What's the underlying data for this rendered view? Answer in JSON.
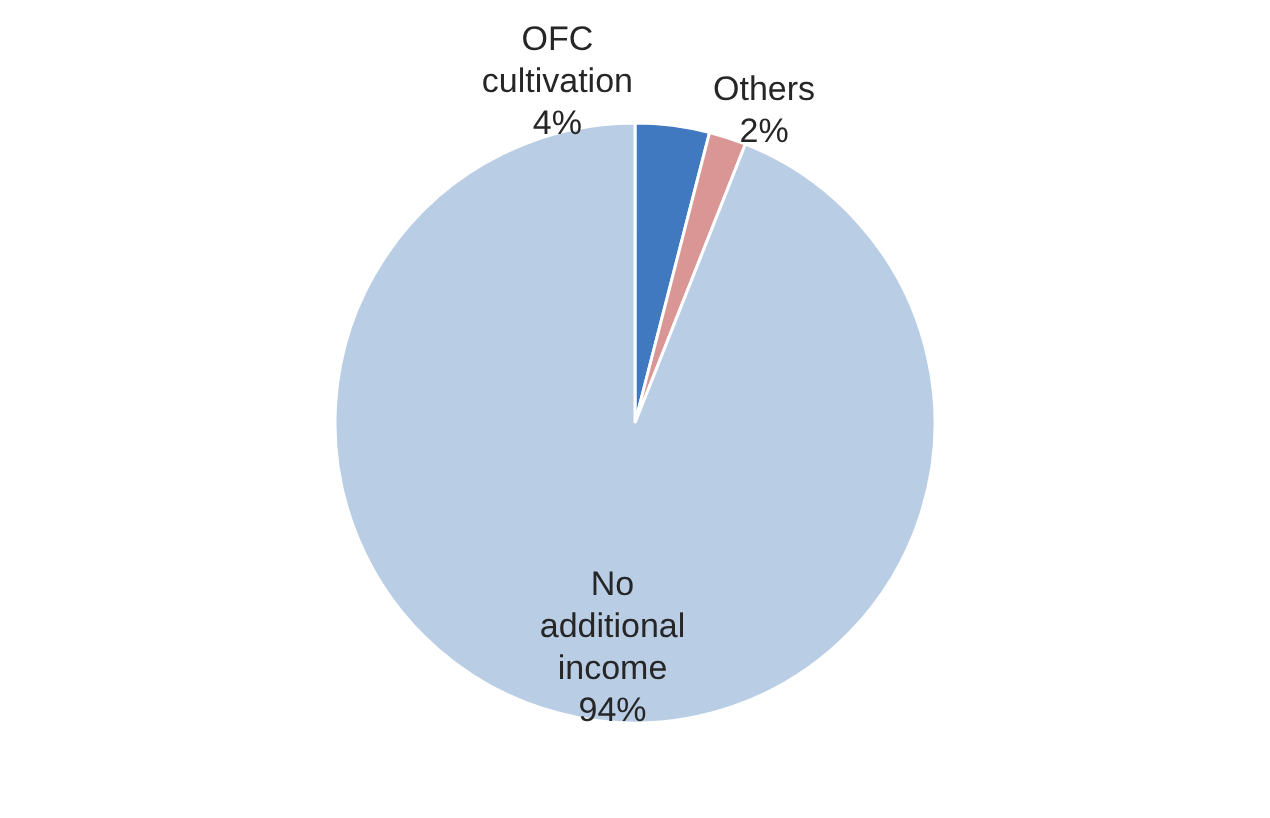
{
  "chart_data": {
    "type": "pie",
    "categories": [
      "OFC cultivation",
      "Others",
      "No additional income"
    ],
    "values": [
      4,
      2,
      94
    ],
    "colors": [
      "#4079c0",
      "#d99694",
      "#b9cde5"
    ],
    "value_labels": [
      "4%",
      "2%",
      "94%"
    ],
    "legend": false
  }
}
